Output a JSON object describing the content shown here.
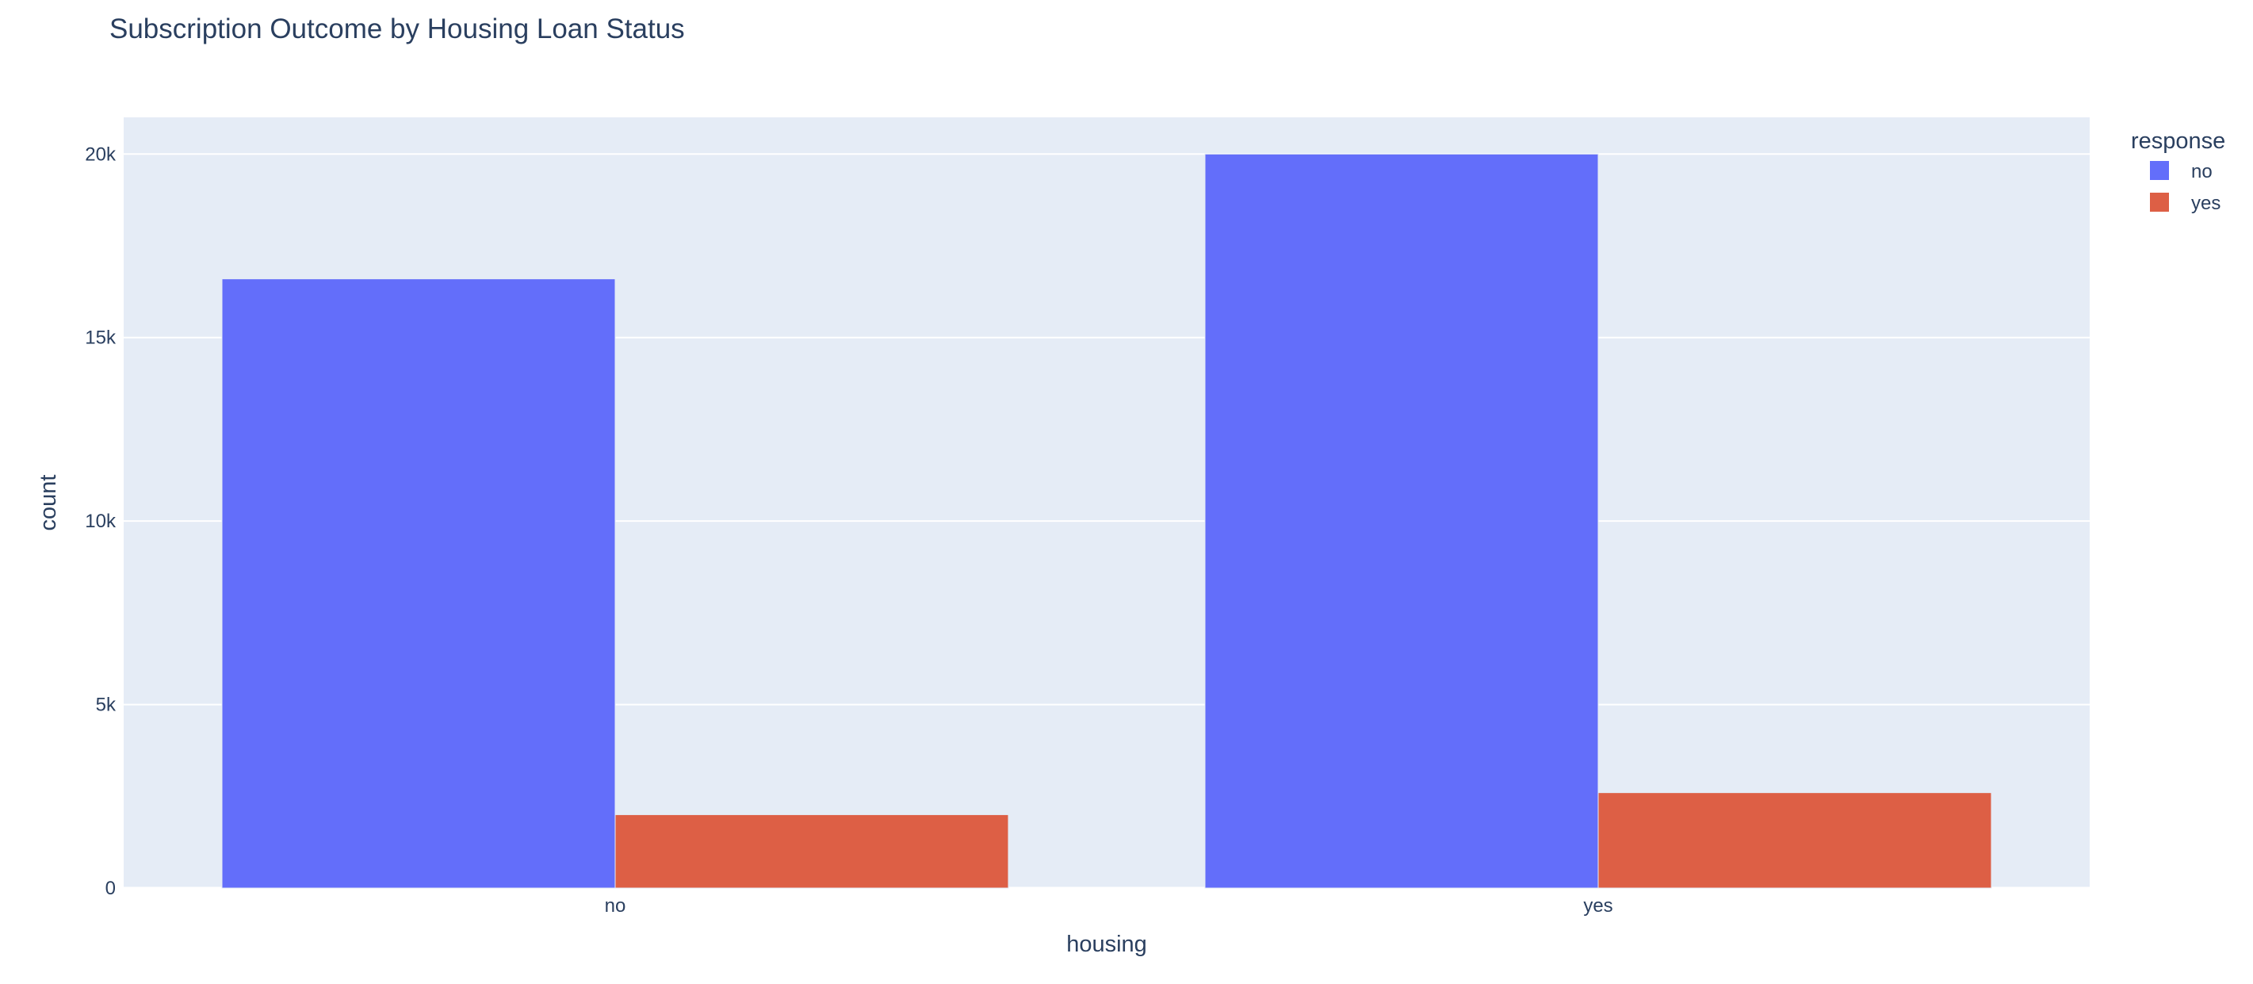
{
  "chart_data": {
    "type": "bar",
    "title": "Subscription Outcome by Housing Loan Status",
    "xlabel": "housing",
    "ylabel": "count",
    "categories": [
      "no",
      "yes"
    ],
    "series": [
      {
        "name": "no",
        "values": [
          16600,
          20000
        ],
        "color": "#636efa"
      },
      {
        "name": "yes",
        "values": [
          2000,
          2600
        ],
        "color": "#dd5f45"
      }
    ],
    "ylim": [
      0,
      21000
    ],
    "yticks": [
      0,
      5000,
      10000,
      15000,
      20000
    ],
    "ytick_labels": [
      "0",
      "5k",
      "10k",
      "15k",
      "20k"
    ],
    "legend": {
      "title": "response",
      "placement": "top-right"
    },
    "grid": true,
    "plot_background": "#e5ecf6",
    "grid_color": "#ffffff"
  }
}
